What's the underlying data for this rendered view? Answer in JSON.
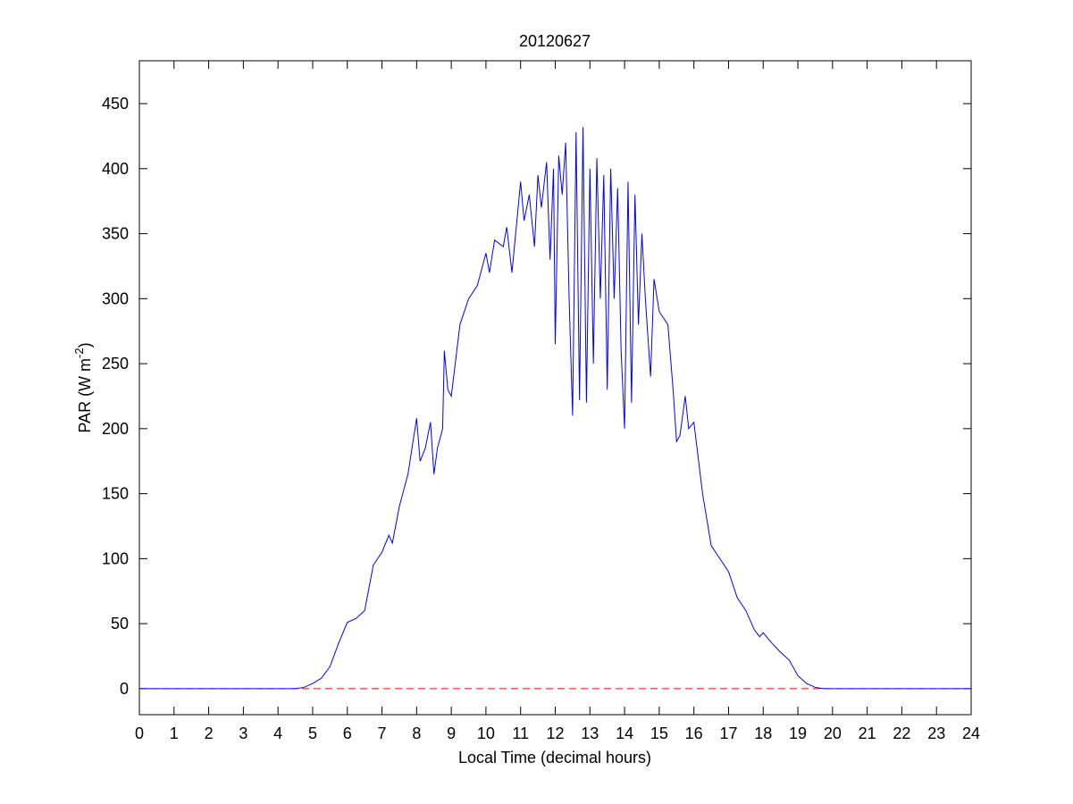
{
  "chart_data": {
    "type": "line",
    "title": "20120627",
    "xlabel": "Local Time (decimal hours)",
    "ylabel": {
      "text": "PAR (W m",
      "sup": "-2",
      "end": ")"
    },
    "x": [
      0,
      4.5,
      4.75,
      5,
      5.25,
      5.5,
      5.75,
      6,
      6.25,
      6.5,
      6.75,
      7,
      7.2,
      7.3,
      7.5,
      7.75,
      8,
      8.1,
      8.25,
      8.4,
      8.5,
      8.6,
      8.75,
      8.8,
      8.9,
      9,
      9.25,
      9.5,
      9.75,
      10,
      10.1,
      10.25,
      10.5,
      10.6,
      10.75,
      11,
      11.1,
      11.25,
      11.4,
      11.5,
      11.6,
      11.75,
      11.85,
      11.95,
      12,
      12.1,
      12.2,
      12.3,
      12.4,
      12.5,
      12.6,
      12.7,
      12.8,
      12.9,
      13,
      13.1,
      13.2,
      13.3,
      13.4,
      13.5,
      13.6,
      13.7,
      13.8,
      13.9,
      14,
      14.1,
      14.2,
      14.3,
      14.4,
      14.5,
      14.6,
      14.75,
      14.85,
      15,
      15.25,
      15.4,
      15.5,
      15.6,
      15.75,
      15.85,
      16,
      16.25,
      16.5,
      16.75,
      17,
      17.25,
      17.5,
      17.75,
      17.9,
      18,
      18.25,
      18.5,
      18.75,
      19,
      19.25,
      19.5,
      19.75,
      24
    ],
    "series": [
      {
        "color": "#0000ff",
        "values": [
          0,
          0,
          1,
          4,
          8,
          17,
          35,
          51,
          54,
          60,
          95,
          105,
          118,
          112,
          140,
          165,
          208,
          175,
          185,
          205,
          165,
          185,
          200,
          260,
          230,
          225,
          280,
          300,
          310,
          335,
          320,
          345,
          340,
          355,
          320,
          390,
          360,
          380,
          340,
          395,
          370,
          405,
          330,
          400,
          265,
          410,
          380,
          420,
          300,
          210,
          428,
          222,
          432,
          220,
          400,
          250,
          408,
          300,
          395,
          230,
          400,
          300,
          385,
          260,
          200,
          390,
          220,
          380,
          280,
          350,
          300,
          240,
          315,
          290,
          280,
          230,
          190,
          195,
          225,
          200,
          205,
          150,
          110,
          100,
          90,
          70,
          60,
          45,
          40,
          43,
          35,
          28,
          22,
          10,
          4,
          1,
          0,
          0
        ]
      }
    ],
    "reference_line": {
      "value": 0,
      "color": "#ff0000",
      "dashed": true
    },
    "xlim": [
      0,
      24
    ],
    "xticks": [
      0,
      1,
      2,
      3,
      4,
      5,
      6,
      7,
      8,
      9,
      10,
      11,
      12,
      13,
      14,
      15,
      16,
      17,
      18,
      19,
      20,
      21,
      22,
      23,
      24
    ],
    "ylim": [
      -20,
      483
    ],
    "yticks": [
      0,
      50,
      100,
      150,
      200,
      250,
      300,
      350,
      400,
      450
    ],
    "grid": false
  }
}
